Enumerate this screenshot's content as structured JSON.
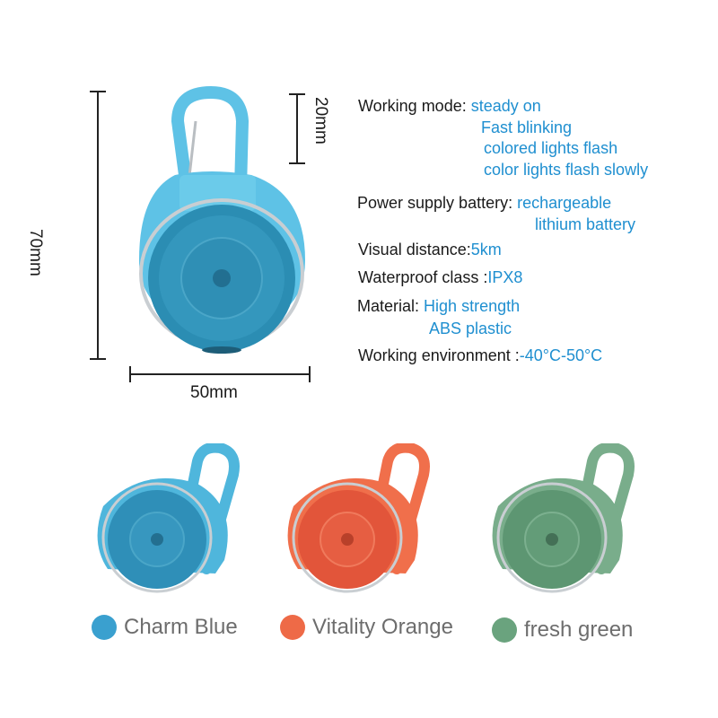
{
  "dimensions": {
    "height": "70mm",
    "width": "50mm",
    "hook_height": "20mm"
  },
  "specs": {
    "working_mode_label": "Working mode:",
    "working_mode_values": [
      "steady on",
      "Fast blinking",
      "colored lights flash",
      "color lights flash slowly"
    ],
    "power_label": "Power supply battery:",
    "power_values": [
      "rechargeable",
      "lithium battery"
    ],
    "visual_label": "Visual distance:",
    "visual_value": "5km",
    "waterproof_label": "Waterproof class :",
    "waterproof_value": "IPX8",
    "material_label": "Material:",
    "material_values": [
      "High strength",
      "ABS plastic"
    ],
    "environment_label": "Working environment :",
    "environment_value": "-40°C-50°C"
  },
  "variants": [
    {
      "label": "Charm Blue",
      "color": "#3aa0cf",
      "body": "#4fb6dc",
      "lens": "#2f8fb8"
    },
    {
      "label": "Vitality Orange",
      "color": "#ee6a47",
      "body": "#f06f4b",
      "lens": "#e2553a"
    },
    {
      "label": "fresh green",
      "color": "#6aa37e",
      "body": "#79ad8b",
      "lens": "#5d9672"
    }
  ],
  "colors": {
    "accent_text": "#1f8fd0",
    "main_body": "#5ec2e6",
    "main_lens": "#2b8db3"
  }
}
